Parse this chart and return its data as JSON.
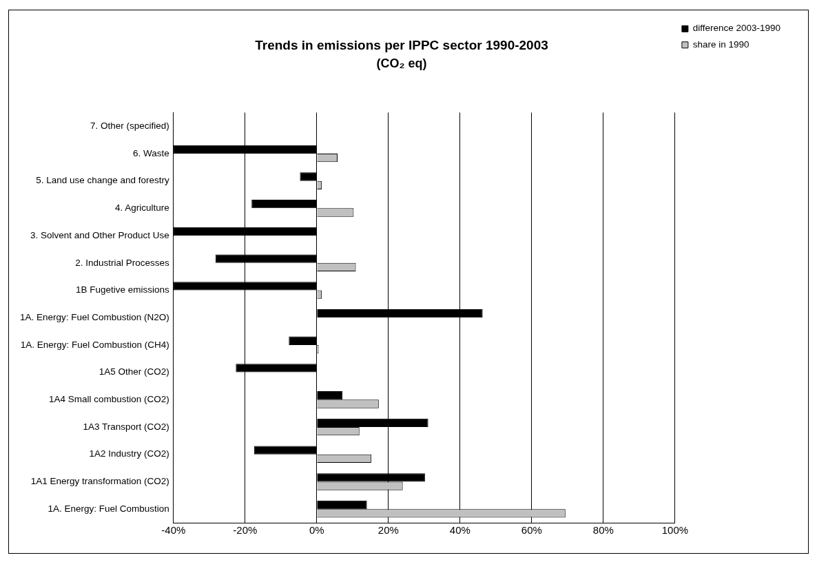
{
  "chart_data": {
    "type": "bar",
    "orientation": "horizontal",
    "title": "Trends in emissions per IPPC sector 1990-2003",
    "subtitle": "(CO₂ eq)",
    "categories": [
      "7. Other (specified)",
      "6. Waste",
      "5. Land use change and forestry",
      "4. Agriculture",
      "3. Solvent and Other Product Use",
      "2. Industrial Processes",
      "1B Fugetive emissions",
      "1A. Energy: Fuel Combustion (N2O)",
      "1A. Energy: Fuel Combustion (CH4)",
      "1A5 Other (CO2)",
      "1A4 Small combustion (CO2)",
      "1A3 Transport (CO2)",
      "1A2 Industry (CO2)",
      "1A1 Energy transformation (CO2)",
      "1A. Energy: Fuel Combustion"
    ],
    "series": [
      {
        "name": "difference 2003-1990",
        "color": "#000000",
        "values": [
          null,
          -40,
          -4.7,
          -18.2,
          -40,
          -28.3,
          -40,
          46.3,
          -7.8,
          -22.6,
          7.2,
          31.1,
          -17.5,
          30.2,
          14
        ]
      },
      {
        "name": "share in 1990",
        "color": "#c0c0c0",
        "values": [
          null,
          5.8,
          1.4,
          10.3,
          null,
          10.9,
          1.4,
          null,
          0.5,
          null,
          17.3,
          11.9,
          15.2,
          24,
          69.4
        ]
      }
    ],
    "xlim": [
      -40,
      100
    ],
    "xticks": [
      {
        "value": -40,
        "label": "-40%"
      },
      {
        "value": -20,
        "label": "-20%"
      },
      {
        "value": 0,
        "label": "0%"
      },
      {
        "value": 20,
        "label": "20%"
      },
      {
        "value": 40,
        "label": "40%"
      },
      {
        "value": 60,
        "label": "60%"
      },
      {
        "value": 80,
        "label": "80%"
      },
      {
        "value": 100,
        "label": "100%"
      }
    ],
    "grid": "x",
    "legend": "top right"
  }
}
